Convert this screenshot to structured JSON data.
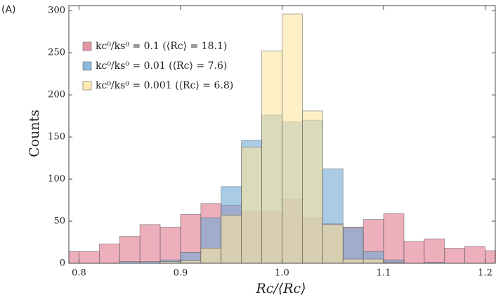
{
  "panel_label": "(A)",
  "chart_data": {
    "type": "histogram",
    "xlabel": "Rc/⟨Rc⟩",
    "ylabel": "Counts",
    "bins": [
      0.78,
      0.8,
      0.82,
      0.84,
      0.86,
      0.88,
      0.9,
      0.92,
      0.94,
      0.96,
      0.98,
      1.0,
      1.02,
      1.04,
      1.06,
      1.08,
      1.1,
      1.12,
      1.14,
      1.16,
      1.18,
      1.2,
      1.22
    ],
    "series": [
      {
        "name": "kc⁰/ks⁰ = 0.1 (⟨Rc⟩ = 18.1)",
        "color": "#e07a8e",
        "values": [
          14,
          14,
          23,
          32,
          46,
          43,
          58,
          71,
          69,
          61,
          61,
          76,
          54,
          47,
          43,
          52,
          59,
          26,
          29,
          18,
          20,
          15
        ]
      },
      {
        "name": "kc⁰/ks⁰ = 0.01 (⟨Rc⟩ = 7.6)",
        "color": "#6fa8d6",
        "values": [
          0,
          0,
          0,
          2,
          2,
          4,
          13,
          54,
          91,
          146,
          176,
          168,
          170,
          112,
          42,
          14,
          4,
          0,
          1,
          0,
          0,
          0
        ]
      },
      {
        "name": "kc⁰/ks⁰ = 0.001 (⟨Rc⟩ = 6.8)",
        "color": "#fde6a0",
        "values": [
          0,
          0,
          0,
          0,
          0,
          2,
          3,
          18,
          57,
          138,
          252,
          296,
          181,
          46,
          5,
          5,
          1,
          0,
          0,
          0,
          0,
          0
        ]
      }
    ],
    "xlim": [
      0.79,
      1.21
    ],
    "ylim": [
      0,
      306
    ],
    "xticks": [
      0.8,
      0.9,
      {
        "value": 1,
        "label": "1.0"
      },
      1.1,
      1.2
    ],
    "yticks": [
      0,
      50,
      100,
      150,
      200,
      250,
      300
    ],
    "legend": "upper left"
  }
}
